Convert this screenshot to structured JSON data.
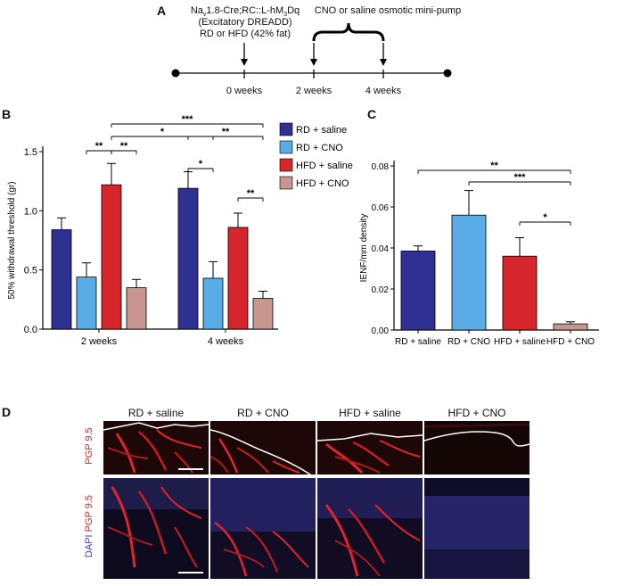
{
  "panelA": {
    "letter": "A",
    "genotype_prefix": "Na",
    "genotype_sub": "v",
    "genotype_mid": "1.8-Cre;RC::L-hM",
    "genotype_sub2": "3",
    "genotype_suffix": "Dq",
    "dreadd": "(Excitatory DREADD)",
    "diet": "RD or HFD (42% fat)",
    "pump": "CNO or saline osmotic mini-pump",
    "t0": "0 weeks",
    "t2": "2 weeks",
    "t4": "4 weeks"
  },
  "colors": {
    "rd_saline": "#2e3192",
    "rd_cno": "#5aace6",
    "hfd_saline": "#d7262b",
    "hfd_cno": "#c9958f"
  },
  "chart_data": [
    {
      "type": "bar",
      "panel": "B",
      "ylabel": "50% withdrawal threshold (gr)",
      "ylim": [
        0,
        1.5
      ],
      "yticks": [
        "0.0",
        "0.5",
        "1.0",
        "1.5"
      ],
      "categories": [
        "2 weeks",
        "4 weeks"
      ],
      "series": [
        {
          "name": "RD + saline",
          "values": [
            0.84,
            1.19
          ],
          "errors": [
            0.1,
            0.14
          ]
        },
        {
          "name": "RD + CNO",
          "values": [
            0.44,
            0.43
          ],
          "errors": [
            0.12,
            0.14
          ]
        },
        {
          "name": "HFD + saline",
          "values": [
            1.22,
            0.86
          ],
          "errors": [
            0.18,
            0.12
          ]
        },
        {
          "name": "HFD + CNO",
          "values": [
            0.35,
            0.26
          ],
          "errors": [
            0.07,
            0.06
          ]
        }
      ],
      "significance": [
        "***",
        "*",
        "**",
        "**",
        "**",
        "*",
        "**"
      ]
    },
    {
      "type": "bar",
      "panel": "C",
      "ylabel": "IENF/mm density",
      "ylim": [
        0,
        0.08
      ],
      "yticks": [
        "0.00",
        "0.02",
        "0.04",
        "0.06",
        "0.08"
      ],
      "categories": [
        "RD + saline",
        "RD + CNO",
        "HFD + saline",
        "HFD + CNO"
      ],
      "values": [
        0.0385,
        0.056,
        0.036,
        0.003
      ],
      "errors": [
        0.0025,
        0.012,
        0.009,
        0.001
      ],
      "significance": [
        "**",
        "***",
        "*"
      ]
    }
  ],
  "panelD": {
    "letter": "D",
    "columns": [
      "RD + saline",
      "RD + CNO",
      "HFD + saline",
      "HFD + CNO"
    ],
    "row1_label": "PGP 9.5",
    "row2_label_a": "DAPI",
    "row2_label_b": "PGP 9.5"
  }
}
